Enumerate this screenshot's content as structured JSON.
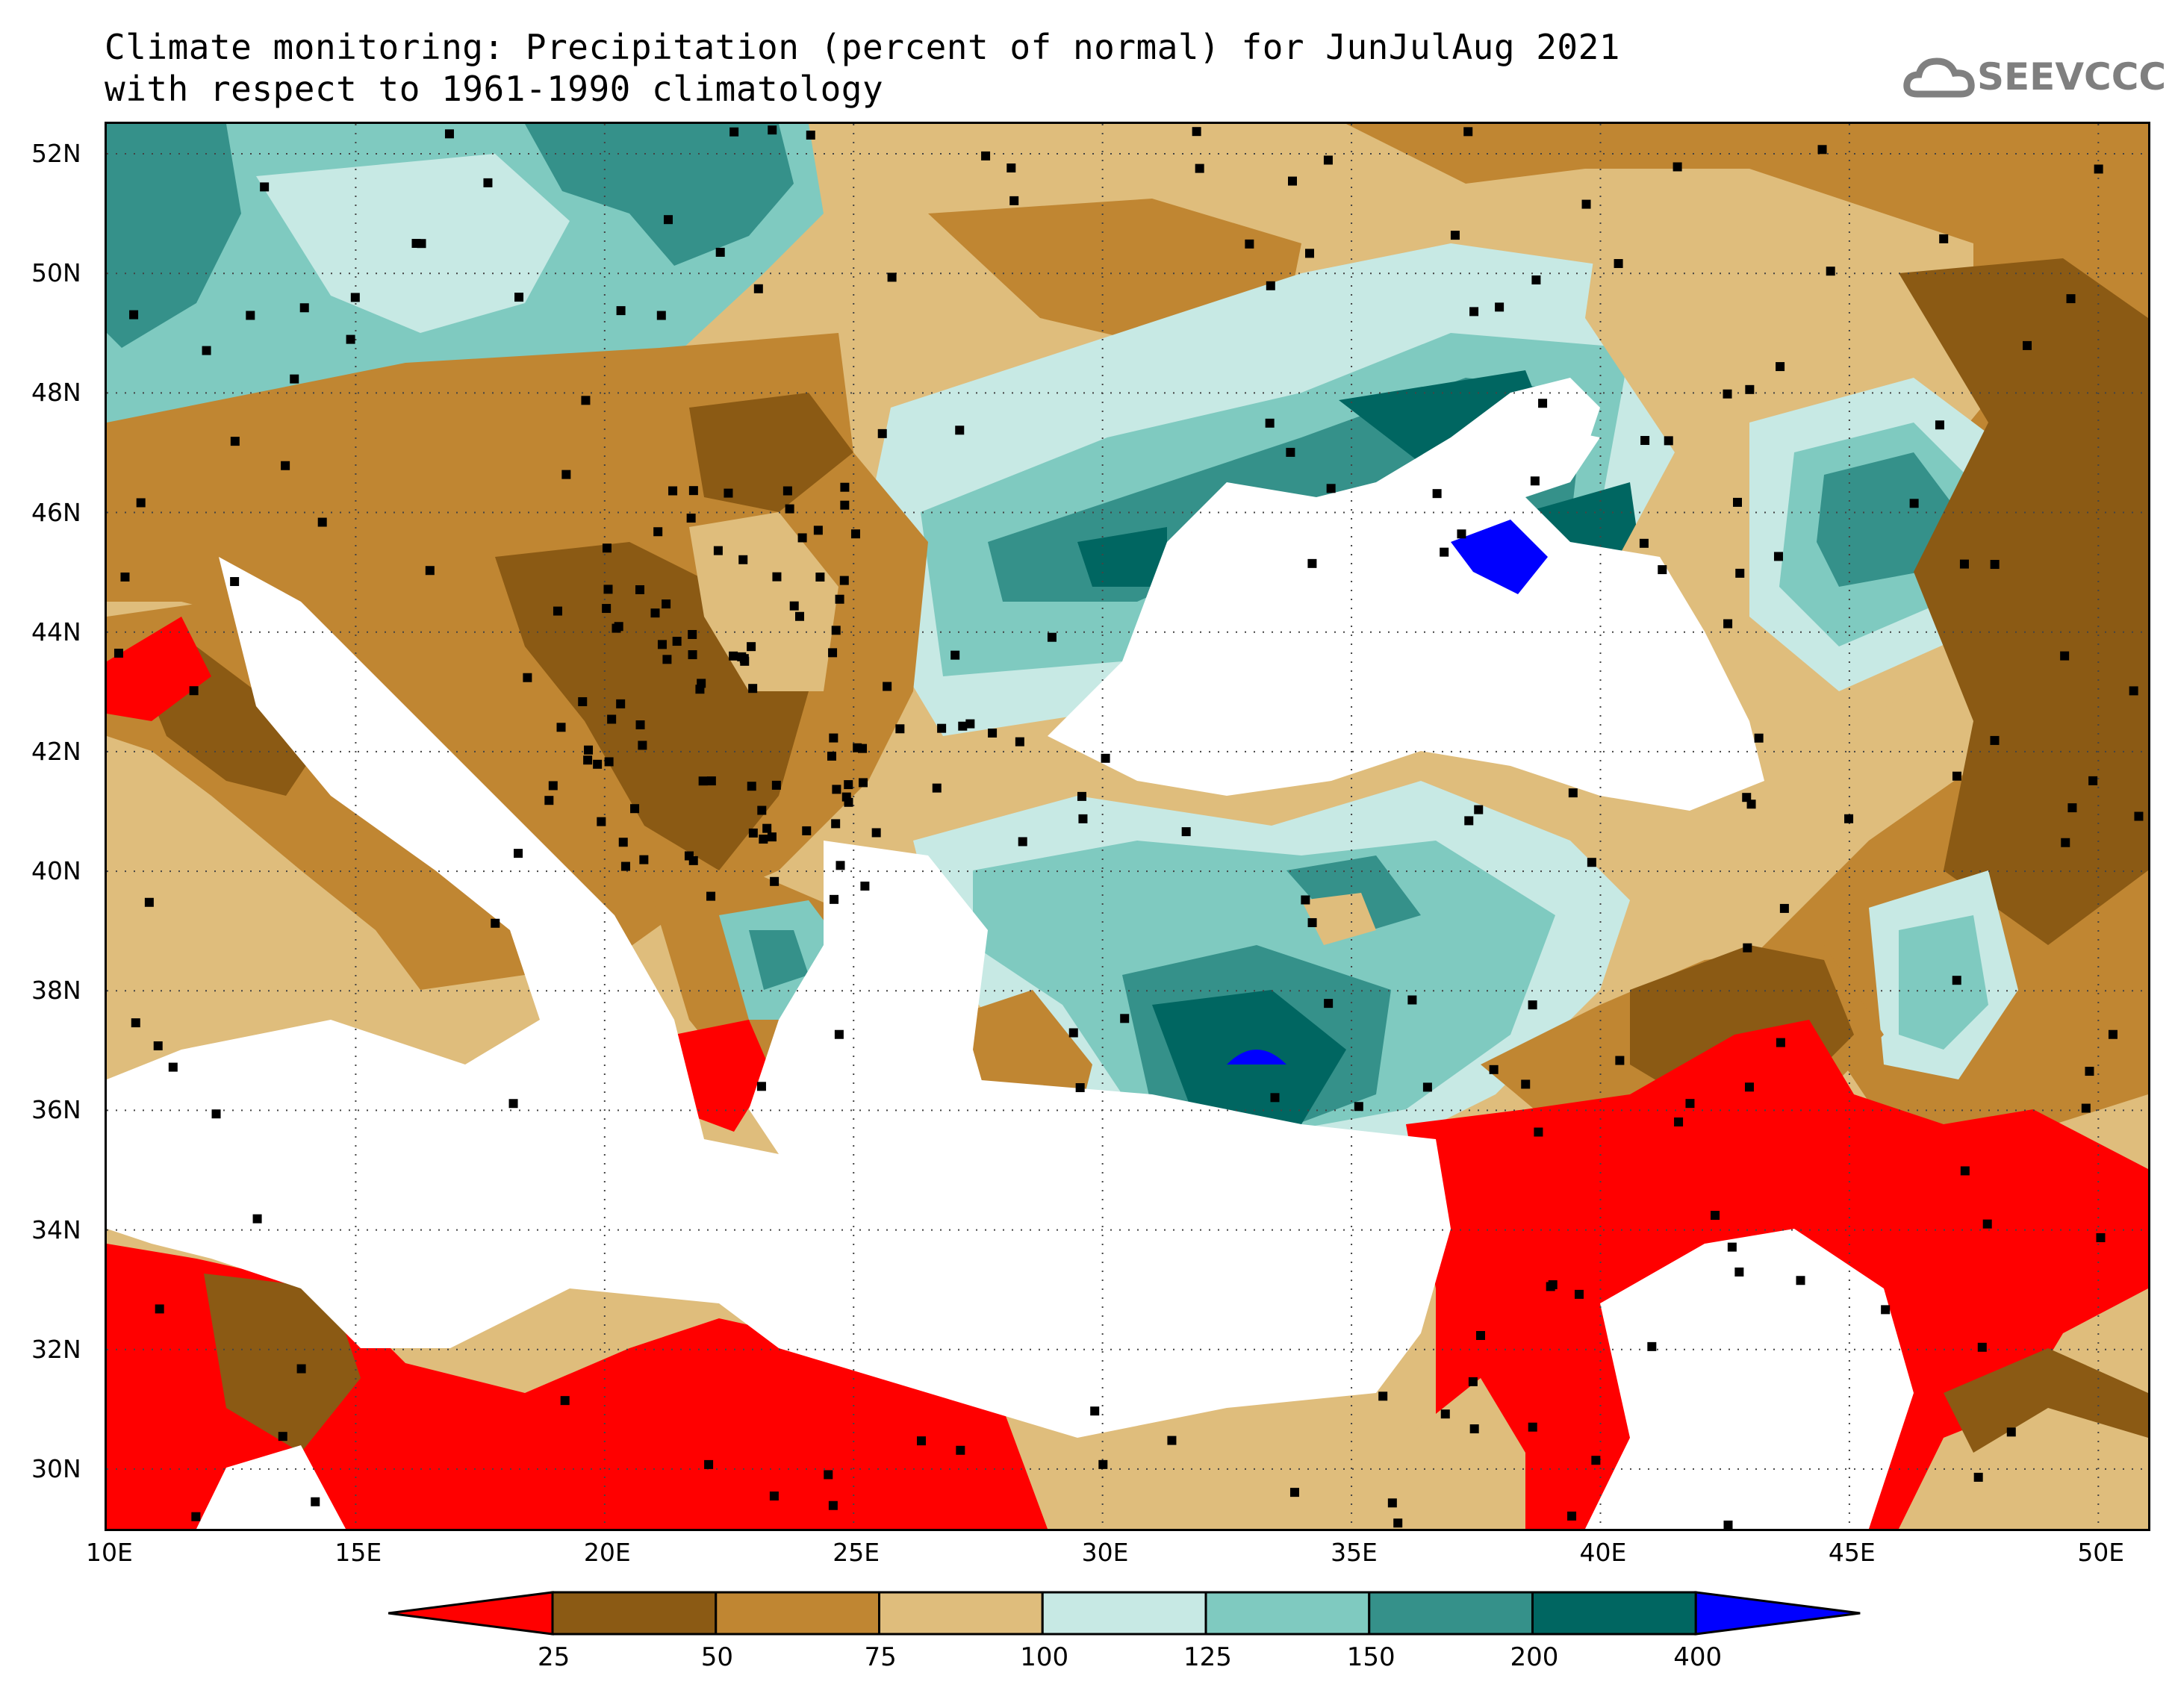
{
  "title": {
    "line1": "Climate monitoring: Precipitation (percent of normal) for JunJulAug 2021",
    "line2": "with respect to 1961-1990 climatology"
  },
  "logo": {
    "text": "SEEVCCC",
    "icon": "cloud-icon",
    "color": "#808080"
  },
  "map": {
    "lat_labels": [
      "52N",
      "50N",
      "48N",
      "46N",
      "44N",
      "42N",
      "40N",
      "38N",
      "36N",
      "34N",
      "32N",
      "30N"
    ],
    "lon_labels": [
      "10E",
      "15E",
      "20E",
      "25E",
      "30E",
      "35E",
      "40E",
      "45E",
      "50E"
    ],
    "lat_range": [
      29,
      52.5
    ],
    "lon_range": [
      10,
      51
    ],
    "grid": true,
    "sea_color": "#ffffff",
    "station_marker": "black-square"
  },
  "colorbar": {
    "labels": [
      "25",
      "50",
      "75",
      "100",
      "125",
      "150",
      "200",
      "400"
    ],
    "colors": [
      "#ff0000",
      "#8b5a14",
      "#c08632",
      "#dfbd7c",
      "#c7e9e4",
      "#7fcac0",
      "#35918a",
      "#006661",
      "#0000ff"
    ],
    "extend": "both"
  }
}
